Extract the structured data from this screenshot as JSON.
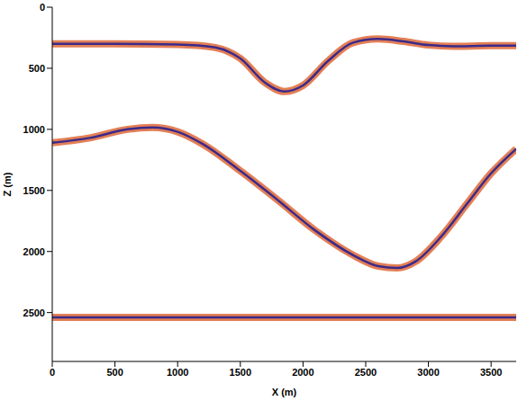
{
  "chart_data": {
    "type": "line",
    "x_label": "X (m)",
    "y_label": "Z (m)",
    "xlim": [
      0,
      3700
    ],
    "xticks": [
      0,
      500,
      1000,
      1500,
      2000,
      2500,
      3000,
      3500
    ],
    "ylim": [
      0,
      2900
    ],
    "yticks": [
      0,
      500,
      1000,
      1500,
      2000,
      2500
    ],
    "y_inverted": true,
    "grid": false,
    "series": [
      {
        "color": "#3b2a8a",
        "x": [
          0,
          500,
          1000,
          1300,
          1500,
          1700,
          1850,
          2000,
          2200,
          2400,
          2600,
          2800,
          3000,
          3200,
          3500,
          3700
        ],
        "values": [
          300,
          300,
          305,
          330,
          420,
          620,
          690,
          640,
          440,
          290,
          260,
          280,
          310,
          320,
          315,
          315
        ]
      },
      {
        "color": "#3b2a8a",
        "x": [
          0,
          300,
          600,
          800,
          1000,
          1200,
          1500,
          1800,
          2100,
          2400,
          2600,
          2750,
          2900,
          3100,
          3300,
          3500,
          3700
        ],
        "values": [
          1110,
          1070,
          1000,
          985,
          1020,
          1120,
          1340,
          1580,
          1830,
          2030,
          2120,
          2135,
          2080,
          1880,
          1620,
          1360,
          1160
        ]
      },
      {
        "color": "#3b2a8a",
        "x": [
          0,
          3700
        ],
        "values": [
          2540,
          2540
        ]
      }
    ]
  }
}
